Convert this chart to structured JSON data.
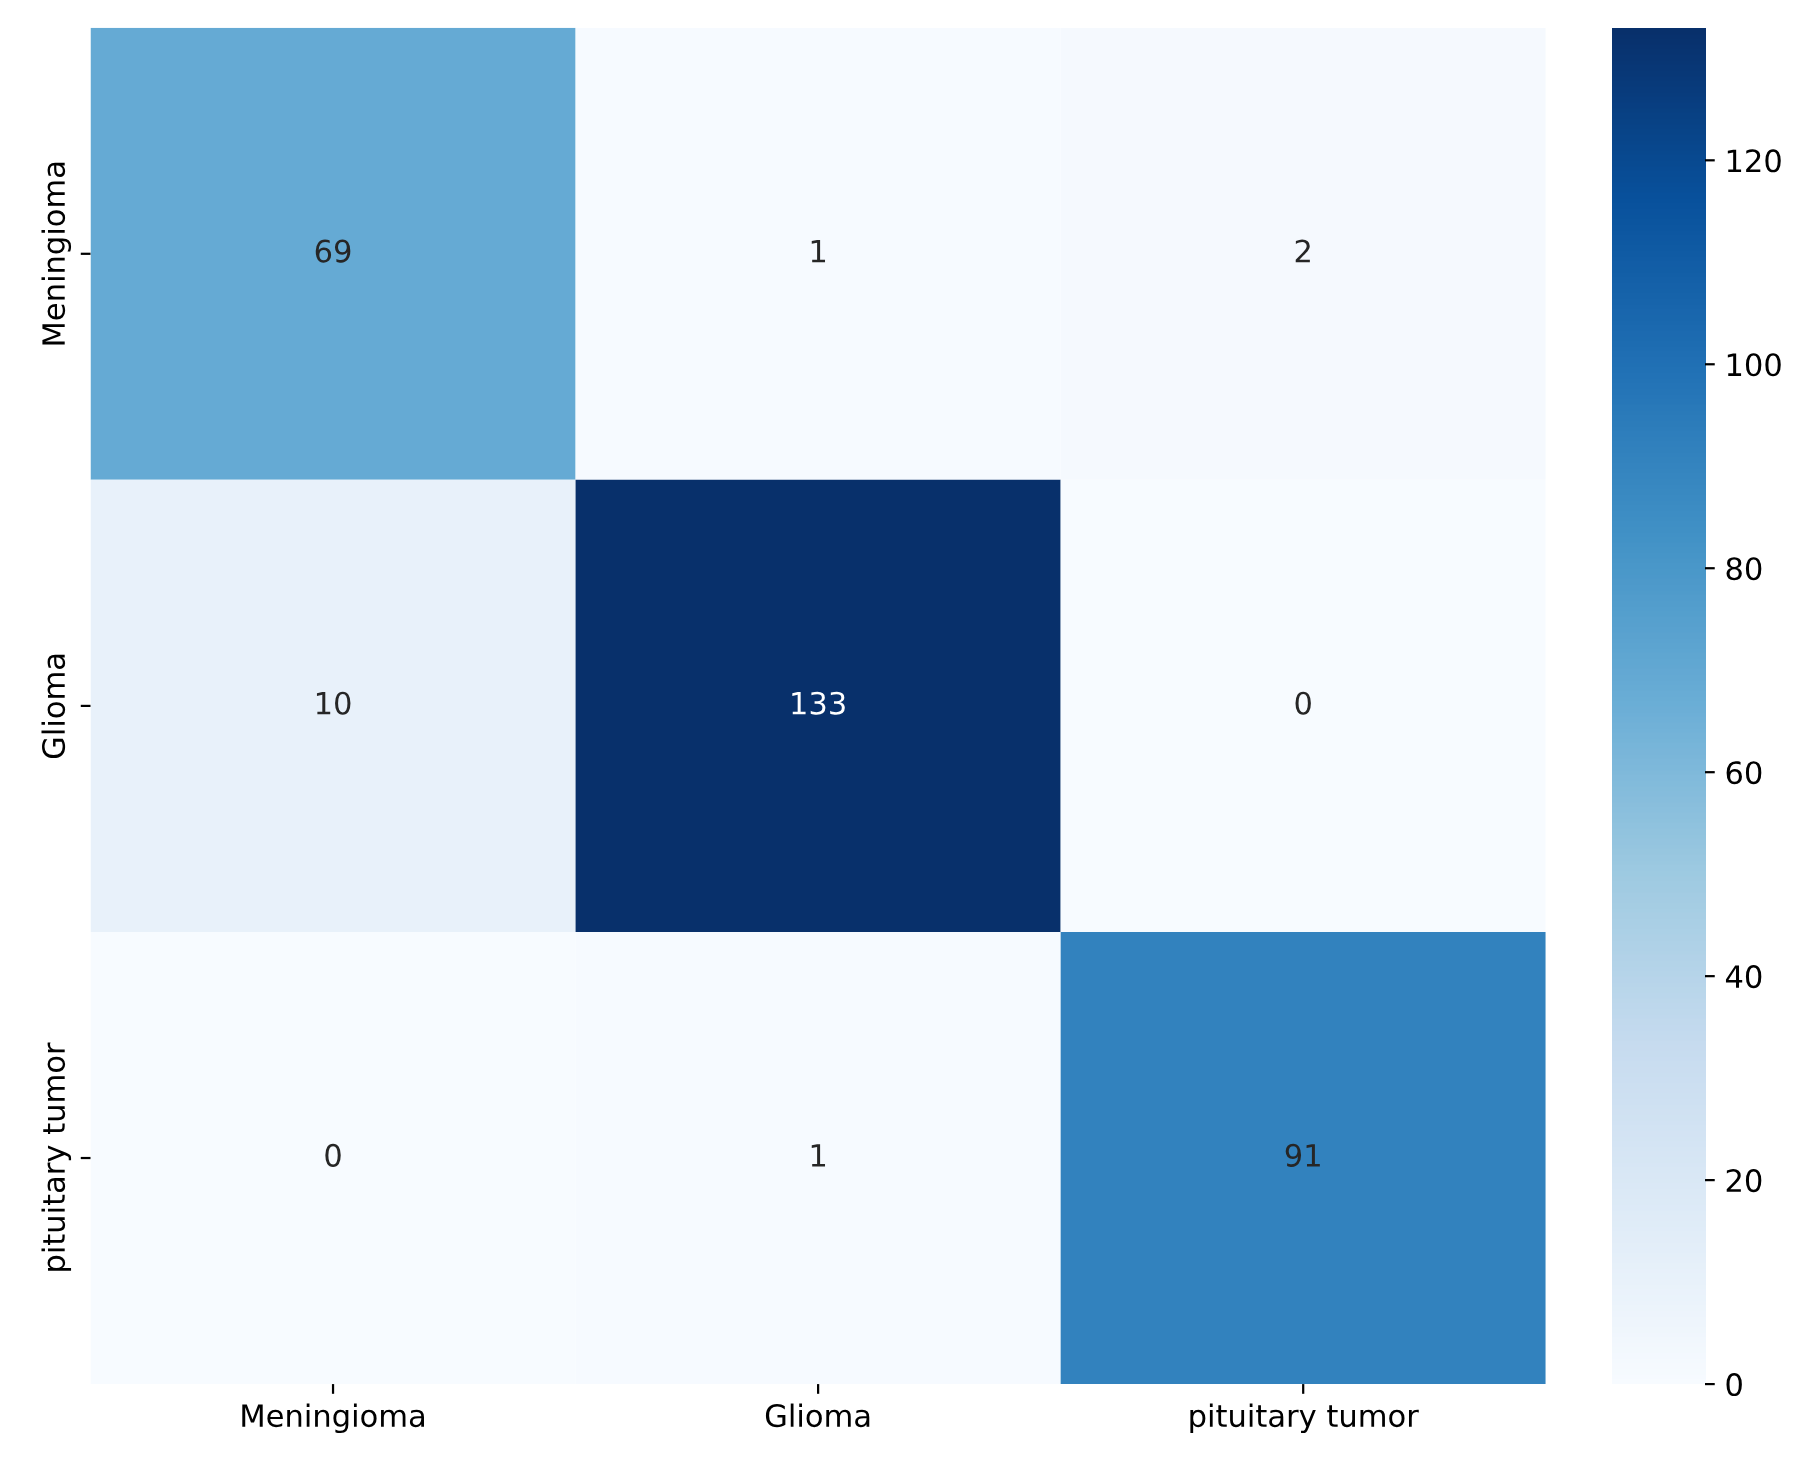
{
  "chart_data": {
    "type": "heatmap",
    "categories": [
      "Meningioma",
      "Glioma",
      "pituitary tumor"
    ],
    "y_categories": [
      "Meningioma",
      "Glioma",
      "pituitary tumor"
    ],
    "cells": [
      [
        69,
        1,
        2
      ],
      [
        10,
        133,
        0
      ],
      [
        0,
        1,
        91
      ]
    ],
    "clim": [
      0,
      133
    ],
    "cticks": [
      0,
      20,
      40,
      60,
      80,
      100,
      120
    ],
    "data_labels": true
  }
}
